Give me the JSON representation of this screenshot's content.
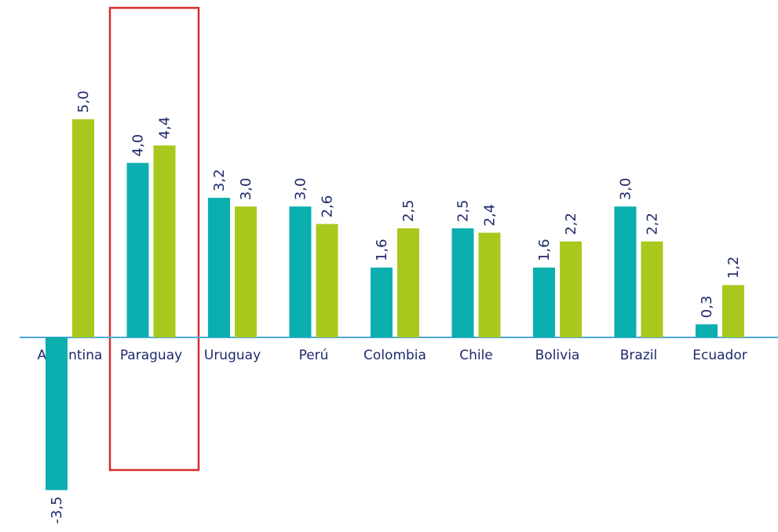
{
  "chart_data": {
    "type": "bar",
    "categories": [
      "Argentina",
      "Paraguay",
      "Uruguay",
      "Perú",
      "Colombia",
      "Chile",
      "Bolivia",
      "Brazil",
      "Ecuador"
    ],
    "series": [
      {
        "color": "#0bafb0",
        "values": [
          -3.5,
          4.0,
          3.2,
          3.0,
          1.6,
          2.5,
          1.6,
          3.0,
          0.3
        ],
        "value_labels": [
          "-3,5",
          "4,0",
          "3,2",
          "3,0",
          "1,6",
          "2,5",
          "1,6",
          "3,0",
          "0,3"
        ]
      },
      {
        "color": "#a9c81d",
        "values": [
          5.0,
          4.4,
          3.0,
          2.6,
          2.5,
          2.4,
          2.2,
          2.2,
          1.2
        ],
        "value_labels": [
          "5,0",
          "4,4",
          "3,0",
          "2,6",
          "2,5",
          "2,4",
          "2,2",
          "2,2",
          "1,2"
        ]
      }
    ]
  }
}
